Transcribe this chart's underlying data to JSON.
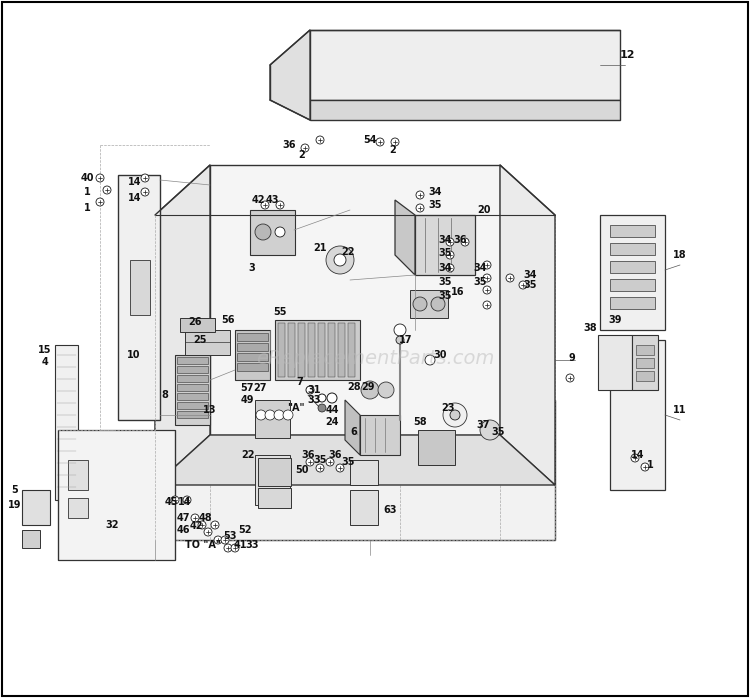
{
  "background_color": "#ffffff",
  "border_color": "#000000",
  "watermark_text": "eReplacementParts.com",
  "watermark_color": "#bbbbbb",
  "diagram_color": "#1a1a1a",
  "line_color": "#333333",
  "fill_light": "#f0f0f0",
  "fill_mid": "#d8d8d8",
  "fill_dark": "#c0c0c0",
  "fill_white": "#fafafa",
  "lw_main": 1.0,
  "lw_thin": 0.6,
  "lw_dash": 0.5,
  "label_fontsize": 7.0
}
